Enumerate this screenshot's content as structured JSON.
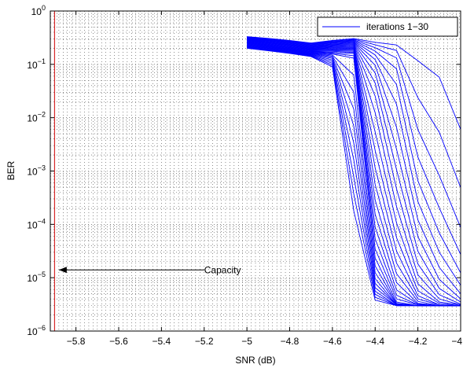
{
  "chart_data": {
    "type": "line",
    "title": "",
    "xlabel": "SNR (dB)",
    "ylabel": "BER",
    "xlim": [
      -5.92,
      -4.0
    ],
    "ylim_exponents": [
      -6,
      0
    ],
    "y_scale": "log",
    "grid": true,
    "x_ticks": [
      -5.8,
      -5.6,
      -5.4,
      -5.2,
      -5.0,
      -4.8,
      -4.6,
      -4.4,
      -4.2,
      -4.0
    ],
    "x_tick_labels": [
      "−5.8",
      "−5.6",
      "−5.4",
      "−5.2",
      "−5",
      "−4.8",
      "−4.6",
      "−4.4",
      "−4.2",
      "−4"
    ],
    "y_tick_exponents": [
      -6,
      -5,
      -4,
      -3,
      -2,
      -1,
      0
    ],
    "legend": {
      "label": "iterations 1−30",
      "placement": "top-right"
    },
    "annotation": {
      "text": "Capacity",
      "arrow_from_x": -5.2,
      "arrow_to_x": -5.88,
      "y": 1.4e-05
    },
    "capacity_line": {
      "x": -5.9,
      "color": "#d62728"
    },
    "series_color": "#0000ff",
    "x": [
      -5.0,
      -4.9,
      -4.8,
      -4.7,
      -4.6,
      -4.5,
      -4.4,
      -4.3,
      -4.2,
      -4.1,
      -4.0
    ],
    "series": [
      {
        "values": [
          0.2,
          0.18,
          0.16,
          0.14,
          0.09,
          0.000178,
          3.8e-06,
          3e-06,
          3e-06,
          3e-06,
          3e-06
        ]
      },
      {
        "values": [
          0.205,
          0.183,
          0.163,
          0.143,
          0.097,
          0.000371,
          4.3e-06,
          3e-06,
          3e-06,
          3e-06,
          3e-06
        ]
      },
      {
        "values": [
          0.209,
          0.187,
          0.166,
          0.146,
          0.105,
          0.000772,
          4.9e-06,
          3e-06,
          3e-06,
          3e-06,
          3e-06
        ]
      },
      {
        "values": [
          0.214,
          0.191,
          0.169,
          0.149,
          0.113,
          0.00161,
          5.6e-06,
          3e-06,
          3e-06,
          3e-06,
          3e-06
        ]
      },
      {
        "values": [
          0.218,
          0.194,
          0.172,
          0.152,
          0.121,
          0.00335,
          6.5e-06,
          3.1e-06,
          3e-06,
          3e-06,
          3e-06
        ]
      },
      {
        "values": [
          0.223,
          0.198,
          0.175,
          0.155,
          0.129,
          0.00697,
          7.8e-06,
          3.1e-06,
          3e-06,
          3e-06,
          3e-06
        ]
      },
      {
        "values": [
          0.227,
          0.202,
          0.179,
          0.158,
          0.136,
          0.0145,
          9.6e-06,
          3.1e-06,
          3e-06,
          3e-06,
          3e-06
        ]
      },
      {
        "values": [
          0.232,
          0.206,
          0.182,
          0.161,
          0.143,
          0.0302,
          1.24e-05,
          3.2e-06,
          3e-06,
          3e-06,
          3e-06
        ]
      },
      {
        "values": [
          0.236,
          0.21,
          0.185,
          0.164,
          0.15,
          0.0629,
          1.66e-05,
          3.3e-06,
          3e-06,
          3e-06,
          3e-06
        ]
      },
      {
        "values": [
          0.241,
          0.214,
          0.189,
          0.167,
          0.156,
          0.131,
          2.34e-05,
          3.5e-06,
          3e-06,
          3e-06,
          3e-06
        ]
      },
      {
        "values": [
          0.245,
          0.218,
          0.192,
          0.171,
          0.162,
          0.145,
          3.45e-05,
          4e-06,
          3.1e-06,
          3e-06,
          3e-06
        ]
      },
      {
        "values": [
          0.25,
          0.222,
          0.196,
          0.174,
          0.168,
          0.16,
          5.38e-05,
          4.7e-06,
          3.1e-06,
          3e-06,
          3e-06
        ]
      },
      {
        "values": [
          0.254,
          0.227,
          0.2,
          0.177,
          0.175,
          0.168,
          8.85e-05,
          5.9e-06,
          3.2e-06,
          3e-06,
          3e-06
        ]
      },
      {
        "values": [
          0.259,
          0.231,
          0.204,
          0.181,
          0.181,
          0.176,
          0.000155,
          8.1e-06,
          3.3e-06,
          3e-06,
          3e-06
        ]
      },
      {
        "values": [
          0.263,
          0.235,
          0.208,
          0.184,
          0.187,
          0.184,
          0.000286,
          1.19e-05,
          3.6e-06,
          3e-06,
          3e-06
        ]
      },
      {
        "values": [
          0.268,
          0.24,
          0.212,
          0.188,
          0.194,
          0.192,
          0.000558,
          1.88e-05,
          4e-06,
          3.1e-06,
          3e-06
        ]
      },
      {
        "values": [
          0.272,
          0.244,
          0.216,
          0.192,
          0.2,
          0.2,
          0.00114,
          3.16e-05,
          4.6e-06,
          3.1e-06,
          3e-06
        ]
      },
      {
        "values": [
          0.277,
          0.249,
          0.221,
          0.196,
          0.206,
          0.208,
          0.00243,
          5.65e-05,
          5.7e-06,
          3.3e-06,
          3e-06
        ]
      },
      {
        "values": [
          0.281,
          0.253,
          0.225,
          0.2,
          0.212,
          0.216,
          0.00538,
          0.000107,
          7.7e-06,
          3.5e-06,
          3.1e-06
        ]
      },
      {
        "values": [
          0.286,
          0.258,
          0.23,
          0.204,
          0.218,
          0.224,
          0.0124,
          0.000216,
          1.13e-05,
          4e-06,
          3.1e-06
        ]
      },
      {
        "values": [
          0.29,
          0.263,
          0.234,
          0.208,
          0.225,
          0.232,
          0.0254,
          0.000463,
          1.81e-05,
          4.8e-06,
          3.2e-06
        ]
      },
      {
        "values": [
          0.295,
          0.267,
          0.239,
          0.212,
          0.231,
          0.24,
          0.0445,
          0.00106,
          3.14e-05,
          6.3e-06,
          3.5e-06
        ]
      },
      {
        "values": [
          0.299,
          0.272,
          0.244,
          0.217,
          0.237,
          0.248,
          0.0689,
          0.00256,
          5.9e-05,
          9.3e-06,
          4e-06
        ]
      },
      {
        "values": [
          0.304,
          0.277,
          0.249,
          0.221,
          0.243,
          0.256,
          0.0958,
          0.00657,
          0.000121,
          1.56e-05,
          5e-06
        ]
      },
      {
        "values": [
          0.308,
          0.282,
          0.254,
          0.226,
          0.25,
          0.264,
          0.123,
          0.0178,
          0.000268,
          3.01e-05,
          7.2e-06
        ]
      },
      {
        "values": [
          0.313,
          0.287,
          0.259,
          0.231,
          0.256,
          0.272,
          0.15,
          0.0418,
          0.000656,
          6.93e-05,
          1.23e-05
        ]
      },
      {
        "values": [
          0.317,
          0.292,
          0.264,
          0.235,
          0.262,
          0.28,
          0.177,
          0.0824,
          0.00183,
          0.000203,
          2.72e-05
        ]
      },
      {
        "values": [
          0.322,
          0.297,
          0.27,
          0.241,
          0.268,
          0.288,
          0.205,
          0.132,
          0.00598,
          0.000821,
          8.74e-05
        ]
      },
      {
        "values": [
          0.326,
          0.302,
          0.275,
          0.246,
          0.275,
          0.296,
          0.233,
          0.182,
          0.0237,
          0.00532,
          0.000489
        ]
      },
      {
        "values": [
          0.331,
          0.307,
          0.281,
          0.251,
          0.281,
          0.304,
          0.259,
          0.231,
          0.117,
          0.0574,
          0.00604
        ]
      }
    ]
  }
}
